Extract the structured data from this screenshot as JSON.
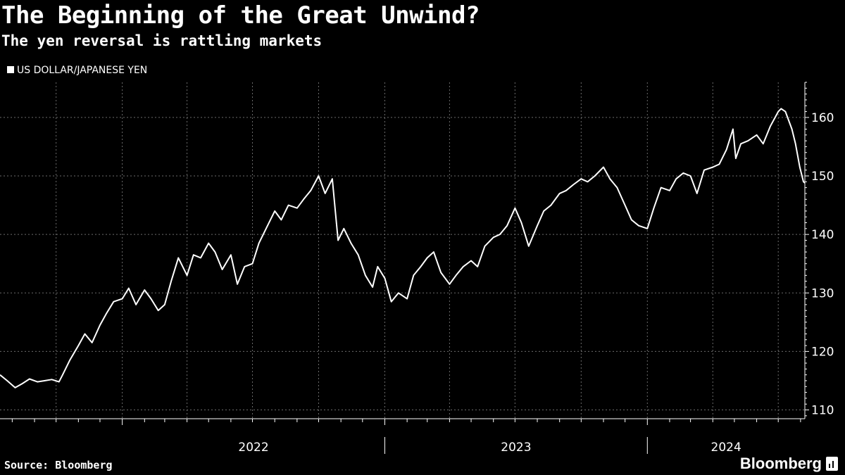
{
  "header": {
    "title": "The Beginning of the Great Unwind?",
    "subtitle": "The yen reversal is rattling markets"
  },
  "footer": {
    "source": "Source: Bloomberg",
    "logo_text": "Bloomberg"
  },
  "colors": {
    "background": "#000000",
    "line": "#ffffff",
    "grid": "#6b6b6b"
  },
  "chart_data": {
    "type": "line",
    "title": "The Beginning of the Great Unwind?",
    "subtitle": "The yen reversal is rattling markets",
    "xlabel": "",
    "ylabel": "",
    "legend": "top-left",
    "grid": true,
    "x_tick_labels": [
      "2022",
      "2023",
      "2024"
    ],
    "y_ticks": [
      110,
      120,
      130,
      140,
      150,
      160
    ],
    "y_axis_side": "right",
    "xlim": [
      "2021-07-15",
      "2024-08-07"
    ],
    "ylim": [
      108.5,
      166
    ],
    "series": [
      {
        "name": "US DOLLAR/JAPANESE YEN",
        "x": [
          "2021-07-15",
          "2021-07-25",
          "2021-08-05",
          "2021-08-15",
          "2021-08-25",
          "2021-09-05",
          "2021-09-15",
          "2021-09-25",
          "2021-10-05",
          "2021-10-10",
          "2021-10-20",
          "2021-11-01",
          "2021-11-10",
          "2021-11-20",
          "2021-12-01",
          "2021-12-10",
          "2021-12-20",
          "2022-01-01",
          "2022-01-10",
          "2022-01-20",
          "2022-02-01",
          "2022-02-10",
          "2022-02-20",
          "2022-03-01",
          "2022-03-10",
          "2022-03-20",
          "2022-04-01",
          "2022-04-10",
          "2022-04-20",
          "2022-05-01",
          "2022-05-10",
          "2022-05-20",
          "2022-06-01",
          "2022-06-10",
          "2022-06-20",
          "2022-07-01",
          "2022-07-10",
          "2022-07-20",
          "2022-08-01",
          "2022-08-10",
          "2022-08-20",
          "2022-09-01",
          "2022-09-10",
          "2022-09-20",
          "2022-10-01",
          "2022-10-10",
          "2022-10-20",
          "2022-10-28",
          "2022-11-05",
          "2022-11-15",
          "2022-11-25",
          "2022-12-05",
          "2022-12-15",
          "2022-12-22",
          "2023-01-01",
          "2023-01-10",
          "2023-01-20",
          "2023-02-01",
          "2023-02-10",
          "2023-02-20",
          "2023-03-01",
          "2023-03-10",
          "2023-03-20",
          "2023-04-01",
          "2023-04-10",
          "2023-04-20",
          "2023-05-01",
          "2023-05-10",
          "2023-05-20",
          "2023-06-01",
          "2023-06-10",
          "2023-06-20",
          "2023-07-01",
          "2023-07-10",
          "2023-07-20",
          "2023-08-01",
          "2023-08-10",
          "2023-08-20",
          "2023-09-01",
          "2023-09-10",
          "2023-09-20",
          "2023-10-01",
          "2023-10-10",
          "2023-10-20",
          "2023-11-01",
          "2023-11-10",
          "2023-11-20",
          "2023-12-01",
          "2023-12-10",
          "2023-12-20",
          "2024-01-01",
          "2024-01-10",
          "2024-01-20",
          "2024-02-01",
          "2024-02-10",
          "2024-02-20",
          "2024-03-01",
          "2024-03-10",
          "2024-03-20",
          "2024-04-01",
          "2024-04-10",
          "2024-04-20",
          "2024-04-29",
          "2024-05-03",
          "2024-05-10",
          "2024-05-20",
          "2024-06-01",
          "2024-06-10",
          "2024-06-20",
          "2024-07-01",
          "2024-07-05",
          "2024-07-11",
          "2024-07-20",
          "2024-07-25",
          "2024-07-31",
          "2024-08-05",
          "2024-08-07"
        ],
        "values": [
          116.0,
          115.0,
          113.8,
          114.5,
          115.3,
          114.8,
          115.0,
          115.2,
          114.8,
          116.0,
          118.5,
          121.0,
          123.0,
          121.5,
          124.5,
          126.5,
          128.5,
          129.0,
          130.8,
          128.0,
          130.5,
          129.0,
          127.0,
          128.0,
          132.0,
          136.0,
          133.0,
          136.5,
          136.0,
          138.5,
          137.0,
          134.0,
          136.5,
          131.5,
          134.5,
          135.0,
          138.5,
          141.0,
          144.0,
          142.5,
          145.0,
          144.5,
          146.0,
          147.5,
          150.0,
          147.0,
          149.5,
          139.0,
          141.0,
          138.5,
          136.5,
          133.0,
          131.0,
          134.5,
          132.5,
          128.5,
          130.0,
          129.0,
          133.0,
          134.5,
          136.0,
          137.0,
          133.5,
          131.5,
          133.0,
          134.5,
          135.5,
          134.5,
          138.0,
          139.5,
          140.0,
          141.5,
          144.5,
          142.0,
          138.0,
          141.5,
          144.0,
          145.0,
          147.0,
          147.5,
          148.5,
          149.5,
          149.0,
          150.0,
          151.5,
          149.5,
          148.0,
          145.0,
          142.5,
          141.5,
          141.0,
          144.5,
          148.0,
          147.5,
          149.5,
          150.5,
          150.0,
          147.0,
          151.0,
          151.5,
          152.0,
          154.5,
          158.0,
          153.0,
          155.5,
          156.0,
          157.0,
          155.5,
          158.5,
          161.0,
          161.5,
          161.0,
          158.0,
          155.5,
          151.5,
          149.0,
          148.8
        ]
      }
    ]
  }
}
